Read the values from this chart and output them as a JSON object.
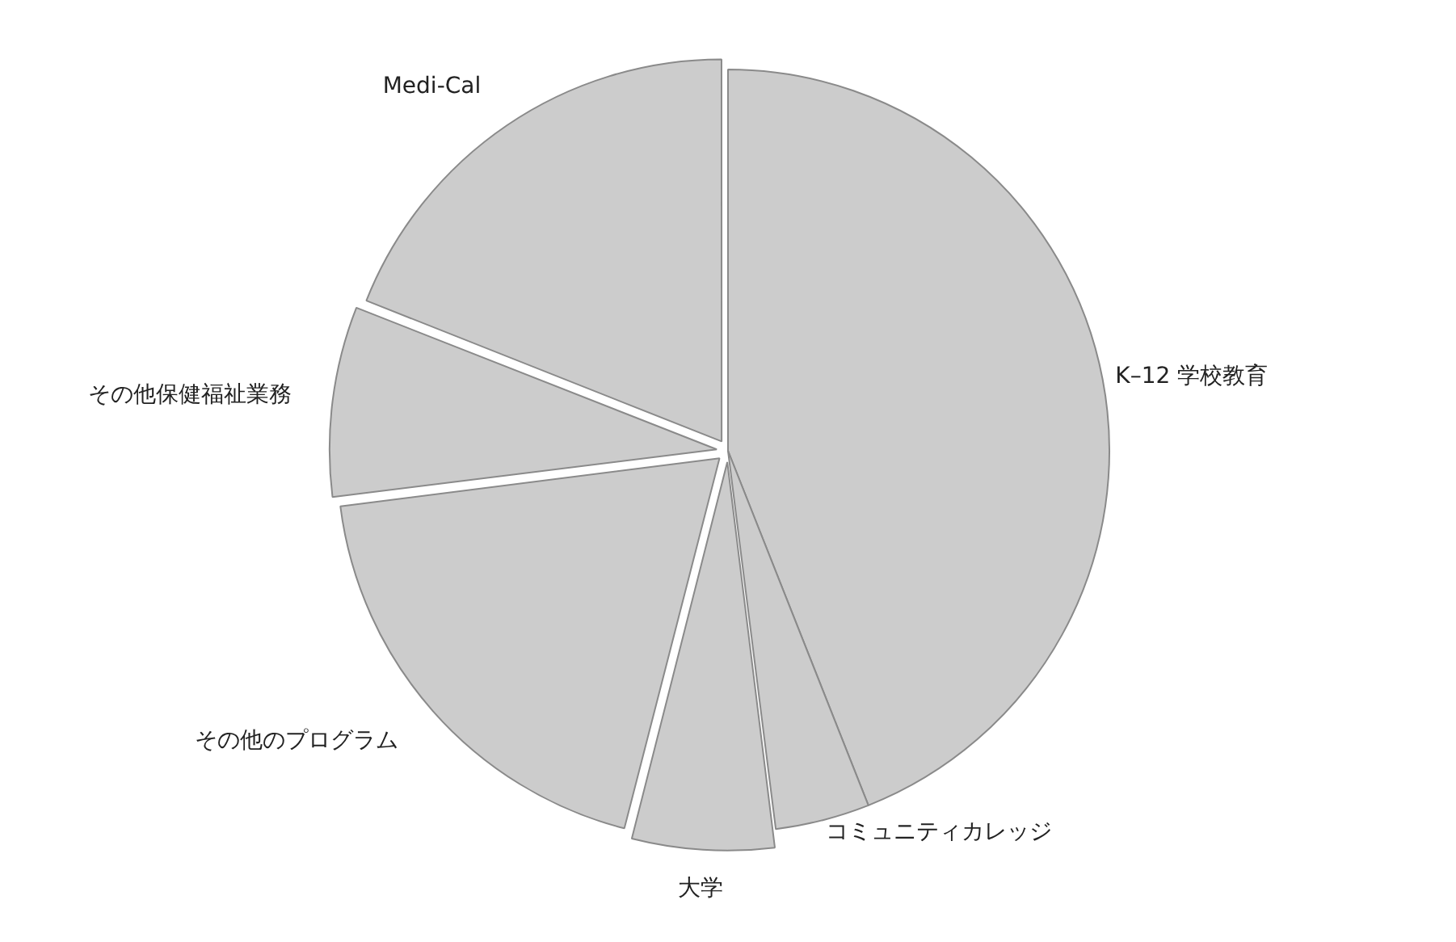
{
  "chart_data": {
    "type": "pie",
    "categories": [
      "K–12 学校教育",
      "コミュニティカレッジ",
      "大学",
      "その他のプログラム",
      "その他保健福祉業務",
      "Medi-Cal"
    ],
    "values": [
      44,
      4,
      6,
      19,
      8,
      19
    ],
    "colors": [
      "#cccccc",
      "#cccccc",
      "#cccccc",
      "#cccccc",
      "#cccccc",
      "#cccccc"
    ],
    "legend": false
  }
}
